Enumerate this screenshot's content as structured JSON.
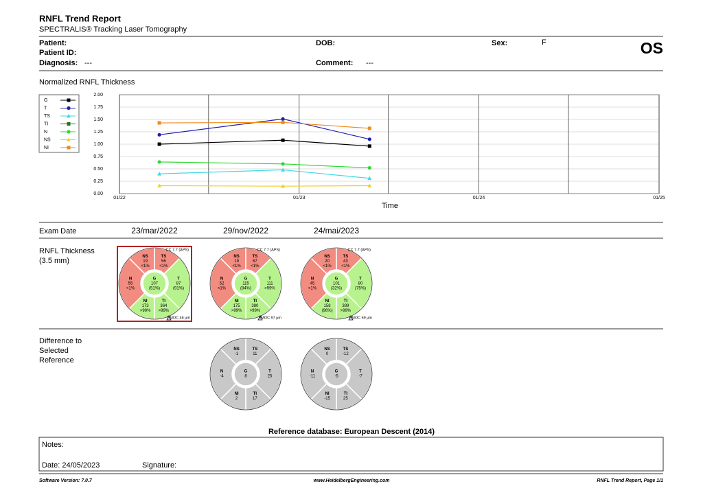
{
  "header": {
    "title": "RNFL Trend Report",
    "subtitle": "SPECTRALIS® Tracking Laser Tomography"
  },
  "patient": {
    "patient_label": "Patient:",
    "patient_id_label": "Patient ID:",
    "diagnosis_label": "Diagnosis:",
    "diagnosis": "---",
    "dob_label": "DOB:",
    "comment_label": "Comment:",
    "comment": "---",
    "sex_label": "Sex:",
    "sex": "F",
    "eye": "OS"
  },
  "chart_data": {
    "type": "line",
    "title": "Normalized RNFL Thickness",
    "x_label": "Time",
    "x": [
      "2022-03-23",
      "2022-11-29",
      "2023-05-24"
    ],
    "xlim": [
      "2022-01-01",
      "2025-01-01"
    ],
    "xticks": [
      {
        "value": "2022-01-01",
        "label": "01/22"
      },
      {
        "value": "2023-01-01",
        "label": "01/23"
      },
      {
        "value": "2024-01-01",
        "label": "01/24"
      },
      {
        "value": "2025-01-01",
        "label": "01/25"
      }
    ],
    "xgrid_minor": [
      "2022-07-01",
      "2023-07-01",
      "2024-07-01"
    ],
    "ylim": [
      0,
      2
    ],
    "yticks": [
      {
        "value": 0,
        "label": "0.00"
      },
      {
        "value": 0.25,
        "label": "0.25"
      },
      {
        "value": 0.5,
        "label": "0.50"
      },
      {
        "value": 0.75,
        "label": "0.75"
      },
      {
        "value": 1,
        "label": "1.00"
      },
      {
        "value": 1.25,
        "label": "1.25"
      },
      {
        "value": 1.5,
        "label": "1.50"
      },
      {
        "value": 1.75,
        "label": "1.75"
      },
      {
        "value": 2,
        "label": "2.00"
      }
    ],
    "grid": true,
    "series": [
      {
        "name": "G",
        "color": "#000000",
        "marker": "square",
        "values": [
          1.0,
          1.08,
          0.96
        ]
      },
      {
        "name": "T",
        "color": "#1f1fb4",
        "marker": "circle",
        "values": [
          1.19,
          1.51,
          1.1
        ]
      },
      {
        "name": "TS",
        "color": "#40d8e8",
        "marker": "triangle",
        "values": [
          0.4,
          0.48,
          0.31
        ]
      },
      {
        "name": "TI",
        "color": "#1b7a1b",
        "marker": "square",
        "values": [
          null,
          null,
          null
        ]
      },
      {
        "name": "N",
        "color": "#2ed82e",
        "marker": "circle",
        "values": [
          0.64,
          0.6,
          0.52
        ]
      },
      {
        "name": "NS",
        "color": "#f0d020",
        "marker": "triangle",
        "values": [
          0.16,
          0.15,
          0.16
        ]
      },
      {
        "name": "NI",
        "color": "#f08a1c",
        "marker": "square",
        "values": [
          1.43,
          1.44,
          1.32
        ]
      }
    ]
  },
  "exam_section": {
    "label": "Exam Date",
    "thickness_label": "RNFL Thickness",
    "thickness_sub": "(3.5 mm)"
  },
  "exams": [
    {
      "date": "23/mar/2022",
      "cc": "CC 7.7 (APS)",
      "bmoc": "BMOC 46 µm",
      "selected": true,
      "sectors": [
        {
          "name": "NS",
          "value": 19,
          "pct": "<1%",
          "color": "#f28b80"
        },
        {
          "name": "TS",
          "value": 56,
          "pct": "<1%",
          "color": "#f28b80"
        },
        {
          "name": "N",
          "value": 55,
          "pct": "<1%",
          "color": "#f28b80"
        },
        {
          "name": "G",
          "value": 107,
          "pct": "(51%)",
          "color": "#b8f28e"
        },
        {
          "name": "T",
          "value": 87,
          "pct": "(91%)",
          "color": "#b8f28e"
        },
        {
          "name": "NI",
          "value": 173,
          "pct": ">99%",
          "color": "#b8f28e"
        },
        {
          "name": "TI",
          "value": 364,
          "pct": ">99%",
          "color": "#b8f28e"
        }
      ]
    },
    {
      "date": "29/nov/2022",
      "cc": "CC 7.7 (APS)",
      "bmoc": "BMOC 97 µm",
      "selected": false,
      "sectors": [
        {
          "name": "NS",
          "value": 19,
          "pct": "<1%",
          "color": "#f28b80"
        },
        {
          "name": "TS",
          "value": 67,
          "pct": "<1%",
          "color": "#f28b80"
        },
        {
          "name": "N",
          "value": 52,
          "pct": "<1%",
          "color": "#f28b80"
        },
        {
          "name": "G",
          "value": 115,
          "pct": "(84%)",
          "color": "#b8f28e"
        },
        {
          "name": "T",
          "value": 111,
          "pct": ">99%",
          "color": "#b8f28e"
        },
        {
          "name": "NI",
          "value": 175,
          "pct": ">99%",
          "color": "#b8f28e"
        },
        {
          "name": "TI",
          "value": 380,
          "pct": ">99%",
          "color": "#b8f28e"
        }
      ]
    },
    {
      "date": "24/mai/2023",
      "cc": "CC 7.7 (APS)",
      "bmoc": "BMOC 69 µm",
      "selected": false,
      "sectors": [
        {
          "name": "NS",
          "value": 20,
          "pct": "<1%",
          "color": "#f28b80"
        },
        {
          "name": "TS",
          "value": 43,
          "pct": "<1%",
          "color": "#f28b80"
        },
        {
          "name": "N",
          "value": 45,
          "pct": "<1%",
          "color": "#f28b80"
        },
        {
          "name": "G",
          "value": 101,
          "pct": "(32%)",
          "color": "#b8f28e"
        },
        {
          "name": "T",
          "value": 80,
          "pct": "(75%)",
          "color": "#b8f28e"
        },
        {
          "name": "NI",
          "value": 158,
          "pct": "(96%)",
          "color": "#b8f28e"
        },
        {
          "name": "TI",
          "value": 389,
          "pct": ">99%",
          "color": "#b8f28e"
        }
      ]
    }
  ],
  "difference_section": {
    "label_lines": [
      "Difference to",
      "Selected",
      "Reference"
    ]
  },
  "differences": [
    null,
    {
      "color": "#c8c8c8",
      "sectors": [
        {
          "name": "NS",
          "value": -1
        },
        {
          "name": "TS",
          "value": 11
        },
        {
          "name": "N",
          "value": -4
        },
        {
          "name": "G",
          "value": 8
        },
        {
          "name": "T",
          "value": 25
        },
        {
          "name": "NI",
          "value": 2
        },
        {
          "name": "TI",
          "value": 17
        }
      ]
    },
    {
      "color": "#c8c8c8",
      "sectors": [
        {
          "name": "NS",
          "value": 0
        },
        {
          "name": "TS",
          "value": -12
        },
        {
          "name": "N",
          "value": -11
        },
        {
          "name": "G",
          "value": -5
        },
        {
          "name": "T",
          "value": -7
        },
        {
          "name": "NI",
          "value": -15
        },
        {
          "name": "TI",
          "value": 25
        }
      ]
    }
  ],
  "reference_db": "Reference database: European Descent (2014)",
  "notes": {
    "notes_label": "Notes:",
    "date": "Date: 24/05/2023",
    "signature_label": "Signature:"
  },
  "footer": {
    "left": "Software Version: 7.0.7",
    "center": "www.HeidelbergEngineering.com",
    "right": "RNFL Trend Report, Page 1/1"
  }
}
